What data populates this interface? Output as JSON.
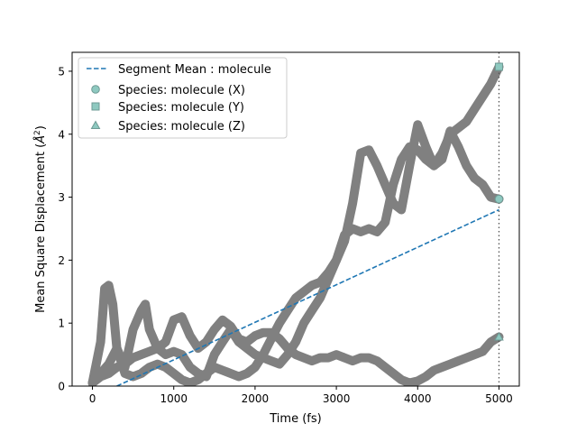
{
  "chart_data": {
    "type": "line",
    "title": "",
    "xlabel": "Time (fs)",
    "ylabel": "Mean Square Displacement",
    "ylabel_unit_base": "Å",
    "ylabel_unit_exp": "2",
    "xlim": [
      -250,
      5250
    ],
    "ylim": [
      0,
      5.3
    ],
    "xticks": [
      0,
      1000,
      2000,
      3000,
      4000,
      5000
    ],
    "yticks": [
      0,
      1,
      2,
      3,
      4,
      5
    ],
    "grid": false,
    "legend_position": "upper-left",
    "vline_x": 5000,
    "colors": {
      "trajectory": "#808080",
      "mean": "#1f77b4",
      "marker_fill": "#8ec9c0",
      "marker_edge": "#6e9a94",
      "vline": "#555555"
    },
    "series": [
      {
        "name": "Species: molecule (X)",
        "marker": "circle",
        "x": [
          0,
          100,
          150,
          200,
          250,
          300,
          400,
          500,
          600,
          650,
          700,
          800,
          900,
          1000,
          1100,
          1200,
          1300,
          1400,
          1500,
          1600,
          1700,
          1800,
          1900,
          2000,
          2100,
          2200,
          2300,
          2400,
          2500,
          2600,
          2700,
          2800,
          2900,
          3000,
          3100,
          3200,
          3300,
          3400,
          3500,
          3600,
          3700,
          3800,
          3900,
          4000,
          4100,
          4200,
          4300,
          4400,
          4500,
          4600,
          4700,
          4800,
          4900,
          5000
        ],
        "y": [
          0.05,
          0.7,
          1.55,
          1.6,
          1.3,
          0.6,
          0.2,
          0.15,
          0.2,
          0.25,
          0.3,
          0.35,
          0.3,
          0.2,
          0.1,
          0.05,
          0.1,
          0.2,
          0.3,
          0.25,
          0.2,
          0.15,
          0.2,
          0.3,
          0.5,
          0.75,
          1.0,
          1.2,
          1.4,
          1.5,
          1.6,
          1.65,
          1.8,
          2.0,
          2.3,
          2.9,
          3.7,
          3.75,
          3.5,
          3.2,
          2.9,
          2.8,
          3.5,
          4.15,
          3.8,
          3.5,
          3.6,
          4.05,
          3.8,
          3.5,
          3.3,
          3.2,
          3.0,
          2.97
        ]
      },
      {
        "name": "Species: molecule (Y)",
        "marker": "square",
        "x": [
          0,
          100,
          200,
          300,
          400,
          500,
          600,
          650,
          700,
          800,
          900,
          1000,
          1100,
          1200,
          1300,
          1400,
          1500,
          1600,
          1700,
          1800,
          1900,
          2000,
          2100,
          2200,
          2300,
          2400,
          2500,
          2600,
          2700,
          2800,
          2900,
          3000,
          3100,
          3200,
          3300,
          3400,
          3500,
          3600,
          3700,
          3800,
          3900,
          4000,
          4100,
          4200,
          4300,
          4400,
          4500,
          4600,
          4700,
          4800,
          4900,
          5000
        ],
        "y": [
          0.05,
          0.2,
          0.35,
          0.6,
          0.3,
          0.9,
          1.2,
          1.3,
          0.9,
          0.6,
          0.5,
          0.55,
          0.5,
          0.3,
          0.2,
          0.15,
          0.5,
          0.7,
          0.9,
          0.7,
          0.6,
          0.5,
          0.45,
          0.4,
          0.35,
          0.5,
          0.7,
          1.0,
          1.2,
          1.4,
          1.7,
          2.0,
          2.4,
          2.5,
          2.45,
          2.5,
          2.45,
          2.6,
          3.2,
          3.6,
          3.8,
          3.75,
          3.6,
          3.5,
          3.7,
          4.0,
          4.1,
          4.2,
          4.4,
          4.6,
          4.8,
          5.07
        ]
      },
      {
        "name": "Species: molecule (Z)",
        "marker": "triangle",
        "x": [
          0,
          100,
          200,
          300,
          400,
          500,
          600,
          700,
          800,
          900,
          1000,
          1100,
          1200,
          1300,
          1400,
          1500,
          1600,
          1700,
          1800,
          1900,
          2000,
          2100,
          2200,
          2300,
          2400,
          2500,
          2600,
          2700,
          2800,
          2900,
          3000,
          3100,
          3200,
          3300,
          3400,
          3500,
          3600,
          3700,
          3800,
          3900,
          4000,
          4100,
          4200,
          4300,
          4400,
          4500,
          4600,
          4700,
          4800,
          4900,
          5000
        ],
        "y": [
          0.05,
          0.15,
          0.2,
          0.3,
          0.35,
          0.45,
          0.5,
          0.55,
          0.6,
          0.7,
          1.05,
          1.1,
          0.8,
          0.6,
          0.7,
          0.9,
          1.05,
          0.95,
          0.75,
          0.7,
          0.8,
          0.85,
          0.85,
          0.75,
          0.6,
          0.5,
          0.45,
          0.4,
          0.45,
          0.45,
          0.5,
          0.45,
          0.4,
          0.45,
          0.45,
          0.4,
          0.3,
          0.2,
          0.1,
          0.05,
          0.08,
          0.15,
          0.25,
          0.3,
          0.35,
          0.4,
          0.45,
          0.5,
          0.55,
          0.7,
          0.78
        ]
      }
    ],
    "mean_line": {
      "name": "Segment Mean : molecule",
      "x": [
        300,
        5000
      ],
      "y": [
        0.0,
        2.8
      ]
    }
  }
}
